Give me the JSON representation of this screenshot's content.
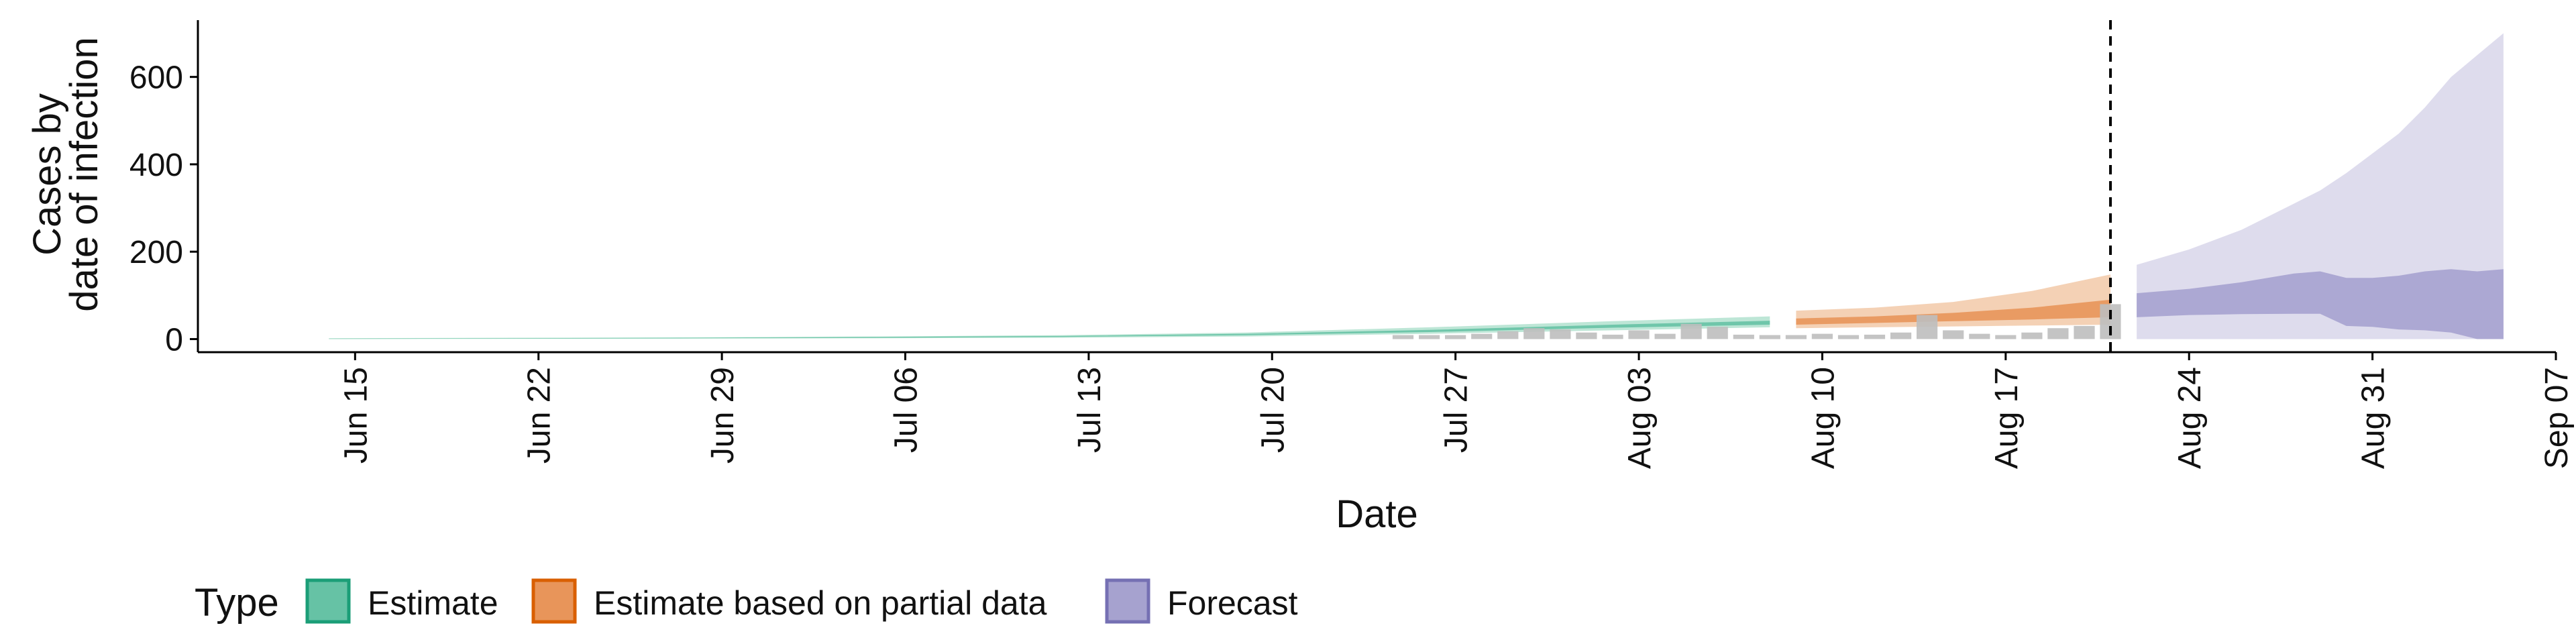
{
  "chart_data": {
    "type": "area",
    "xlabel": "Date",
    "ylabel_lines": [
      "Cases by",
      "date of infection"
    ],
    "ylim": [
      -30,
      730
    ],
    "xlim": [
      "2020-06-09",
      "2020-09-07"
    ],
    "y_ticks": [
      0,
      200,
      400,
      600
    ],
    "x_ticks": [
      {
        "date": "2020-06-15",
        "label": "Jun 15"
      },
      {
        "date": "2020-06-22",
        "label": "Jun 22"
      },
      {
        "date": "2020-06-29",
        "label": "Jun 29"
      },
      {
        "date": "2020-07-06",
        "label": "Jul 06"
      },
      {
        "date": "2020-07-13",
        "label": "Jul 13"
      },
      {
        "date": "2020-07-20",
        "label": "Jul 20"
      },
      {
        "date": "2020-07-27",
        "label": "Jul 27"
      },
      {
        "date": "2020-08-03",
        "label": "Aug 03"
      },
      {
        "date": "2020-08-10",
        "label": "Aug 10"
      },
      {
        "date": "2020-08-17",
        "label": "Aug 17"
      },
      {
        "date": "2020-08-24",
        "label": "Aug 24"
      },
      {
        "date": "2020-08-31",
        "label": "Aug 31"
      },
      {
        "date": "2020-09-07",
        "label": "Sep 07"
      }
    ],
    "vline_date": "2020-08-21",
    "legend": {
      "title": "Type",
      "items": [
        {
          "label": "Estimate",
          "fill": "#66c2a5",
          "stroke": "#1b9e77"
        },
        {
          "label": "Estimate based on partial data",
          "fill": "#e8955a",
          "stroke": "#d95f02"
        },
        {
          "label": "Forecast",
          "fill": "#a6a2cf",
          "stroke": "#7570b3"
        }
      ]
    },
    "series": [
      {
        "name": "Estimate",
        "outer_color": "#b2e2cf",
        "inner_color": "#66c2a5",
        "points": [
          {
            "x": "2020-06-14",
            "lo90": 0,
            "lo50": 0.5,
            "hi50": 1,
            "hi90": 2
          },
          {
            "x": "2020-06-21",
            "lo90": 0.5,
            "lo50": 1,
            "hi50": 2,
            "hi90": 3
          },
          {
            "x": "2020-06-28",
            "lo90": 1,
            "lo50": 2,
            "hi50": 3,
            "hi90": 4
          },
          {
            "x": "2020-07-05",
            "lo90": 2,
            "lo50": 3,
            "hi50": 5,
            "hi90": 6
          },
          {
            "x": "2020-07-12",
            "lo90": 3,
            "lo50": 5,
            "hi50": 7,
            "hi90": 9
          },
          {
            "x": "2020-07-19",
            "lo90": 6,
            "lo50": 9,
            "hi50": 12,
            "hi90": 15
          },
          {
            "x": "2020-07-26",
            "lo90": 12,
            "lo50": 16,
            "hi50": 21,
            "hi90": 27
          },
          {
            "x": "2020-08-02",
            "lo90": 20,
            "lo50": 26,
            "hi50": 33,
            "hi90": 41
          },
          {
            "x": "2020-08-08",
            "lo90": 27,
            "lo50": 33,
            "hi50": 42,
            "hi90": 52
          }
        ]
      },
      {
        "name": "Estimate based on partial data",
        "outer_color": "#f2c9a8",
        "inner_color": "#e8955a",
        "points": [
          {
            "x": "2020-08-09",
            "lo90": 25,
            "lo50": 33,
            "hi50": 47,
            "hi90": 65
          },
          {
            "x": "2020-08-12",
            "lo90": 27,
            "lo50": 37,
            "hi50": 52,
            "hi90": 72
          },
          {
            "x": "2020-08-15",
            "lo90": 29,
            "lo50": 41,
            "hi50": 60,
            "hi90": 85
          },
          {
            "x": "2020-08-18",
            "lo90": 31,
            "lo50": 45,
            "hi50": 72,
            "hi90": 110
          },
          {
            "x": "2020-08-21",
            "lo90": 33,
            "lo50": 50,
            "hi50": 90,
            "hi90": 148
          }
        ]
      },
      {
        "name": "Forecast",
        "outer_color": "#d8d6ea",
        "inner_color": "#a6a2cf",
        "points": [
          {
            "x": "2020-08-22",
            "lo90": 0,
            "lo50": 50,
            "hi50": 105,
            "hi90": 170
          },
          {
            "x": "2020-08-24",
            "lo90": 0,
            "lo50": 55,
            "hi50": 115,
            "hi90": 205
          },
          {
            "x": "2020-08-26",
            "lo90": 0,
            "lo50": 57,
            "hi50": 130,
            "hi90": 250
          },
          {
            "x": "2020-08-28",
            "lo90": 0,
            "lo50": 58,
            "hi50": 150,
            "hi90": 310
          },
          {
            "x": "2020-08-29",
            "lo90": 0,
            "lo50": 58,
            "hi50": 155,
            "hi90": 340
          },
          {
            "x": "2020-08-30",
            "lo90": 0,
            "lo50": 30,
            "hi50": 140,
            "hi90": 380
          },
          {
            "x": "2020-08-31",
            "lo90": 0,
            "lo50": 28,
            "hi50": 140,
            "hi90": 425
          },
          {
            "x": "2020-09-01",
            "lo90": 0,
            "lo50": 22,
            "hi50": 145,
            "hi90": 470
          },
          {
            "x": "2020-09-02",
            "lo90": 0,
            "lo50": 20,
            "hi50": 155,
            "hi90": 530
          },
          {
            "x": "2020-09-03",
            "lo90": 0,
            "lo50": 15,
            "hi50": 160,
            "hi90": 600
          },
          {
            "x": "2020-09-04",
            "lo90": 0,
            "lo50": 0,
            "hi50": 155,
            "hi90": 650
          },
          {
            "x": "2020-09-05",
            "lo90": 0,
            "lo50": 0,
            "hi50": 160,
            "hi90": 700
          }
        ]
      }
    ],
    "observed_cases": {
      "color": "#bebebe",
      "points": [
        {
          "x": "2020-07-25",
          "y": 3
        },
        {
          "x": "2020-07-26",
          "y": 5
        },
        {
          "x": "2020-07-27",
          "y": 8
        },
        {
          "x": "2020-07-28",
          "y": 12
        },
        {
          "x": "2020-07-29",
          "y": 18
        },
        {
          "x": "2020-07-30",
          "y": 25
        },
        {
          "x": "2020-07-31",
          "y": 22
        },
        {
          "x": "2020-08-01",
          "y": 15
        },
        {
          "x": "2020-08-02",
          "y": 10
        },
        {
          "x": "2020-08-03",
          "y": 20
        },
        {
          "x": "2020-08-04",
          "y": 12
        },
        {
          "x": "2020-08-05",
          "y": 35
        },
        {
          "x": "2020-08-06",
          "y": 28
        },
        {
          "x": "2020-08-07",
          "y": 10
        },
        {
          "x": "2020-08-08",
          "y": 8
        },
        {
          "x": "2020-08-09",
          "y": 6
        },
        {
          "x": "2020-08-10",
          "y": 12
        },
        {
          "x": "2020-08-11",
          "y": 5
        },
        {
          "x": "2020-08-12",
          "y": 10
        },
        {
          "x": "2020-08-13",
          "y": 15
        },
        {
          "x": "2020-08-14",
          "y": 55
        },
        {
          "x": "2020-08-15",
          "y": 20
        },
        {
          "x": "2020-08-16",
          "y": 12
        },
        {
          "x": "2020-08-17",
          "y": 8
        },
        {
          "x": "2020-08-18",
          "y": 15
        },
        {
          "x": "2020-08-19",
          "y": 25
        },
        {
          "x": "2020-08-20",
          "y": 30
        },
        {
          "x": "2020-08-21",
          "y": 80
        }
      ]
    }
  }
}
